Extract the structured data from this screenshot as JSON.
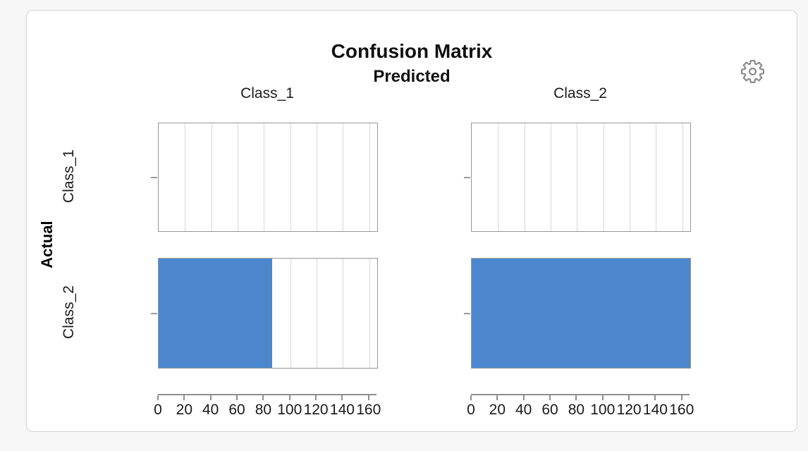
{
  "chart_data": {
    "type": "bar",
    "orientation": "horizontal",
    "title": "Confusion Matrix",
    "column_axis_title": "Predicted",
    "row_axis_title": "Actual",
    "columns": [
      "Class_1",
      "Class_2"
    ],
    "rows": [
      "Class_1",
      "Class_2"
    ],
    "values": [
      [
        0,
        0
      ],
      [
        86,
        166
      ]
    ],
    "xlim": [
      0,
      166
    ],
    "x_ticks": [
      0,
      20,
      40,
      60,
      80,
      100,
      120,
      140,
      160
    ],
    "bar_color": "#4c87ce",
    "gridline_color": "#d8d8d8",
    "grid": true,
    "legend_position": "none"
  },
  "icons": {
    "settings": "gear-icon"
  }
}
